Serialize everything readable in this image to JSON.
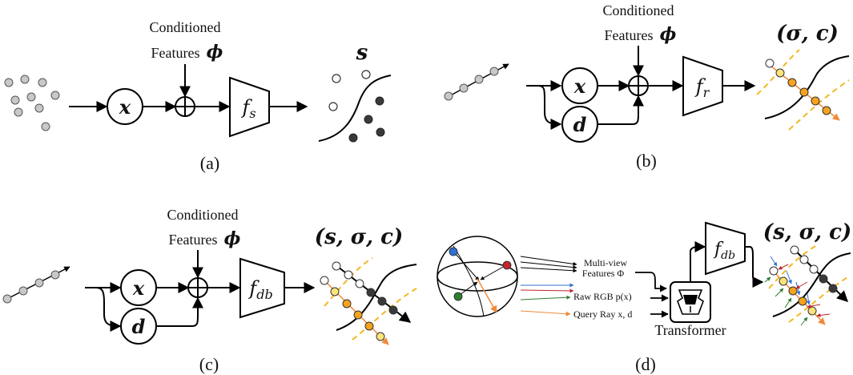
{
  "panel_a": {
    "cond_line1": "Conditioned",
    "cond_line2": "Features",
    "cond_symbol": "ϕ",
    "input_symbol": "x",
    "network": "f",
    "network_sub": "s",
    "output": "s",
    "caption": "(a)"
  },
  "panel_b": {
    "cond_line1": "Conditioned",
    "cond_line2": "Features",
    "cond_symbol": "ϕ",
    "input_x": "x",
    "input_d": "d",
    "network": "f",
    "network_sub": "r",
    "output": "(σ, c)",
    "caption": "(b)"
  },
  "panel_c": {
    "cond_line1": "Conditioned",
    "cond_line2": "Features",
    "cond_symbol": "ϕ",
    "input_x": "x",
    "input_d": "d",
    "network": "f",
    "network_sub": "db",
    "output": "(s, σ, c)",
    "caption": "(c)"
  },
  "panel_d": {
    "feat_line1": "Multi-view",
    "feat_line2": "Features Φ",
    "rgb_label": "Raw RGB p(x)",
    "ray_label": "Query Ray x, d",
    "transformer_label": "Transformer",
    "network": "f",
    "network_sub": "db",
    "output": "(s, σ, c)",
    "caption": "(d)"
  },
  "colors": {
    "point_gray": "#c8c8c8",
    "point_dark": "#3a3a3a",
    "dash_yellow": "#f2b824",
    "sample_orange": "#f5a21c",
    "sample_yellow": "#fbe37a",
    "arrow_orange": "#f08a3a",
    "cam_blue": "#2f6fd6",
    "cam_red": "#c0262b",
    "cam_green": "#2e7d32"
  }
}
